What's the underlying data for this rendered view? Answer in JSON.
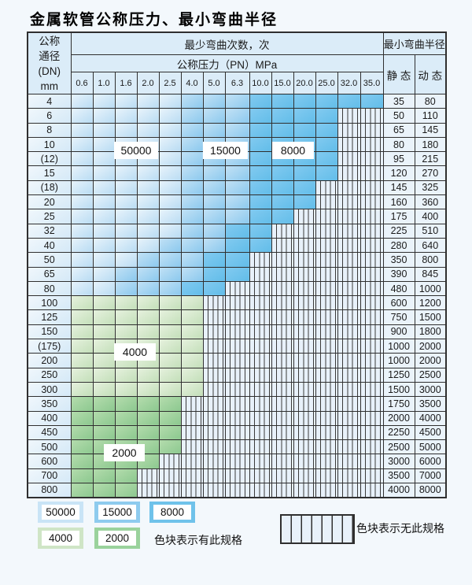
{
  "title": "金属软管公称压力、最小弯曲半径",
  "header": {
    "dn_lines": [
      "公称",
      "通径",
      "(DN)",
      "mm"
    ],
    "cycles_title": "最少弯曲次数，次",
    "pressure_title": "公称压力（PN）MPa",
    "pressures": [
      "0.6",
      "1.0",
      "1.6",
      "2.0",
      "2.5",
      "4.0",
      "5.0",
      "6.3",
      "10.0",
      "15.0",
      "20.0",
      "25.0",
      "32.0",
      "35.0"
    ],
    "radius_title": "最小弯曲半径",
    "static_label": "静 态",
    "dynamic_label": "动 态"
  },
  "code_legend": {
    "b1": "50000",
    "b2": "15000",
    "b3": "8000",
    "g1": "4000",
    "g2": "2000",
    "h": "无此规格"
  },
  "rows": [
    {
      "dn": "4",
      "cells": [
        "b1",
        "b1",
        "b1",
        "b1",
        "b1",
        "b2",
        "b2",
        "b2",
        "b3",
        "b3",
        "b3",
        "b3",
        "b3",
        "b3"
      ],
      "static": "35",
      "dynamic": "80"
    },
    {
      "dn": "6",
      "cells": [
        "b1",
        "b1",
        "b1",
        "b1",
        "b1",
        "b2",
        "b2",
        "b2",
        "b3",
        "b3",
        "b3",
        "b3",
        "h",
        "h"
      ],
      "static": "50",
      "dynamic": "110"
    },
    {
      "dn": "8",
      "cells": [
        "b1",
        "b1",
        "b1",
        "b1",
        "b1",
        "b2",
        "b2",
        "b2",
        "b3",
        "b3",
        "b3",
        "b3",
        "h",
        "h"
      ],
      "static": "65",
      "dynamic": "145"
    },
    {
      "dn": "10",
      "cells": [
        "b1",
        "b1",
        "b1",
        "b1",
        "b1",
        "b2",
        "b2",
        "b2",
        "b3",
        "b3",
        "b3",
        "b3",
        "h",
        "h"
      ],
      "static": "80",
      "dynamic": "180"
    },
    {
      "dn": "(12)",
      "cells": [
        "b1",
        "b1",
        "b1",
        "b1",
        "b1",
        "b2",
        "b2",
        "b2",
        "b3",
        "b3",
        "b3",
        "b3",
        "h",
        "h"
      ],
      "static": "95",
      "dynamic": "215"
    },
    {
      "dn": "15",
      "cells": [
        "b1",
        "b1",
        "b1",
        "b1",
        "b1",
        "b2",
        "b2",
        "b2",
        "b3",
        "b3",
        "b3",
        "b3",
        "h",
        "h"
      ],
      "static": "120",
      "dynamic": "270"
    },
    {
      "dn": "(18)",
      "cells": [
        "b1",
        "b1",
        "b1",
        "b1",
        "b1",
        "b2",
        "b2",
        "b2",
        "b3",
        "b3",
        "b3",
        "h",
        "h",
        "h"
      ],
      "static": "145",
      "dynamic": "325"
    },
    {
      "dn": "20",
      "cells": [
        "b1",
        "b1",
        "b1",
        "b1",
        "b1",
        "b2",
        "b2",
        "b2",
        "b3",
        "b3",
        "b3",
        "h",
        "h",
        "h"
      ],
      "static": "160",
      "dynamic": "360"
    },
    {
      "dn": "25",
      "cells": [
        "b1",
        "b1",
        "b1",
        "b1",
        "b1",
        "b2",
        "b2",
        "b2",
        "b3",
        "b3",
        "h",
        "h",
        "h",
        "h"
      ],
      "static": "175",
      "dynamic": "400"
    },
    {
      "dn": "32",
      "cells": [
        "b1",
        "b1",
        "b1",
        "b1",
        "b1",
        "b2",
        "b2",
        "b3",
        "b3",
        "h",
        "h",
        "h",
        "h",
        "h"
      ],
      "static": "225",
      "dynamic": "510"
    },
    {
      "dn": "40",
      "cells": [
        "b1",
        "b1",
        "b1",
        "b1",
        "b2",
        "b2",
        "b2",
        "b3",
        "b3",
        "h",
        "h",
        "h",
        "h",
        "h"
      ],
      "static": "280",
      "dynamic": "640"
    },
    {
      "dn": "50",
      "cells": [
        "b1",
        "b1",
        "b1",
        "b2",
        "b2",
        "b2",
        "b3",
        "b3",
        "h",
        "h",
        "h",
        "h",
        "h",
        "h"
      ],
      "static": "350",
      "dynamic": "800"
    },
    {
      "dn": "65",
      "cells": [
        "b1",
        "b1",
        "b2",
        "b2",
        "b2",
        "b2",
        "b3",
        "b3",
        "h",
        "h",
        "h",
        "h",
        "h",
        "h"
      ],
      "static": "390",
      "dynamic": "845"
    },
    {
      "dn": "80",
      "cells": [
        "b1",
        "b1",
        "b2",
        "b2",
        "b2",
        "b3",
        "b3",
        "h",
        "h",
        "h",
        "h",
        "h",
        "h",
        "h"
      ],
      "static": "480",
      "dynamic": "1000"
    },
    {
      "dn": "100",
      "cells": [
        "g1",
        "g1",
        "g1",
        "g1",
        "g1",
        "g1",
        "h",
        "h",
        "h",
        "h",
        "h",
        "h",
        "h",
        "h"
      ],
      "static": "600",
      "dynamic": "1200"
    },
    {
      "dn": "125",
      "cells": [
        "g1",
        "g1",
        "g1",
        "g1",
        "g1",
        "g1",
        "h",
        "h",
        "h",
        "h",
        "h",
        "h",
        "h",
        "h"
      ],
      "static": "750",
      "dynamic": "1500"
    },
    {
      "dn": "150",
      "cells": [
        "g1",
        "g1",
        "g1",
        "g1",
        "g1",
        "g1",
        "h",
        "h",
        "h",
        "h",
        "h",
        "h",
        "h",
        "h"
      ],
      "static": "900",
      "dynamic": "1800"
    },
    {
      "dn": "(175)",
      "cells": [
        "g1",
        "g1",
        "g1",
        "g1",
        "g1",
        "g1",
        "h",
        "h",
        "h",
        "h",
        "h",
        "h",
        "h",
        "h"
      ],
      "static": "1000",
      "dynamic": "2000"
    },
    {
      "dn": "200",
      "cells": [
        "g1",
        "g1",
        "g1",
        "g1",
        "g1",
        "g1",
        "h",
        "h",
        "h",
        "h",
        "h",
        "h",
        "h",
        "h"
      ],
      "static": "1000",
      "dynamic": "2000"
    },
    {
      "dn": "250",
      "cells": [
        "g1",
        "g1",
        "g1",
        "g1",
        "g1",
        "g1",
        "h",
        "h",
        "h",
        "h",
        "h",
        "h",
        "h",
        "h"
      ],
      "static": "1250",
      "dynamic": "2500"
    },
    {
      "dn": "300",
      "cells": [
        "g1",
        "g1",
        "g1",
        "g1",
        "g1",
        "g1",
        "h",
        "h",
        "h",
        "h",
        "h",
        "h",
        "h",
        "h"
      ],
      "static": "1500",
      "dynamic": "3000"
    },
    {
      "dn": "350",
      "cells": [
        "g2",
        "g2",
        "g2",
        "g2",
        "g2",
        "h",
        "h",
        "h",
        "h",
        "h",
        "h",
        "h",
        "h",
        "h"
      ],
      "static": "1750",
      "dynamic": "3500"
    },
    {
      "dn": "400",
      "cells": [
        "g2",
        "g2",
        "g2",
        "g2",
        "g2",
        "h",
        "h",
        "h",
        "h",
        "h",
        "h",
        "h",
        "h",
        "h"
      ],
      "static": "2000",
      "dynamic": "4000"
    },
    {
      "dn": "450",
      "cells": [
        "g2",
        "g2",
        "g2",
        "g2",
        "g2",
        "h",
        "h",
        "h",
        "h",
        "h",
        "h",
        "h",
        "h",
        "h"
      ],
      "static": "2250",
      "dynamic": "4500"
    },
    {
      "dn": "500",
      "cells": [
        "g2",
        "g2",
        "g2",
        "g2",
        "g2",
        "h",
        "h",
        "h",
        "h",
        "h",
        "h",
        "h",
        "h",
        "h"
      ],
      "static": "2500",
      "dynamic": "5000"
    },
    {
      "dn": "600",
      "cells": [
        "g2",
        "g2",
        "g2",
        "g2",
        "h",
        "h",
        "h",
        "h",
        "h",
        "h",
        "h",
        "h",
        "h",
        "h"
      ],
      "static": "3000",
      "dynamic": "6000"
    },
    {
      "dn": "700",
      "cells": [
        "g2",
        "g2",
        "g2",
        "h",
        "h",
        "h",
        "h",
        "h",
        "h",
        "h",
        "h",
        "h",
        "h",
        "h"
      ],
      "static": "3500",
      "dynamic": "7000"
    },
    {
      "dn": "800",
      "cells": [
        "g2",
        "g2",
        "g2",
        "h",
        "h",
        "h",
        "h",
        "h",
        "h",
        "h",
        "h",
        "h",
        "h",
        "h"
      ],
      "static": "4000",
      "dynamic": "8000"
    }
  ],
  "overlays": {
    "v50000": "50000",
    "v15000": "15000",
    "v8000": "8000",
    "v4000": "4000",
    "v2000": "2000"
  },
  "legend": {
    "swatches": [
      "50000",
      "15000",
      "8000",
      "4000",
      "2000"
    ],
    "has_spec_text": "色块表示有此规格",
    "no_spec_text": "色块表示无此规格"
  },
  "colors": {
    "band_50000": "#c9e4f6",
    "band_15000": "#8ecbee",
    "band_8000": "#6fc2ea",
    "band_4000": "#cfe5c6",
    "band_2000": "#9ad29c",
    "hatch_bg": "#e8f1fa",
    "header_bg": "#dbecf8",
    "border": "#2f2f2f"
  }
}
